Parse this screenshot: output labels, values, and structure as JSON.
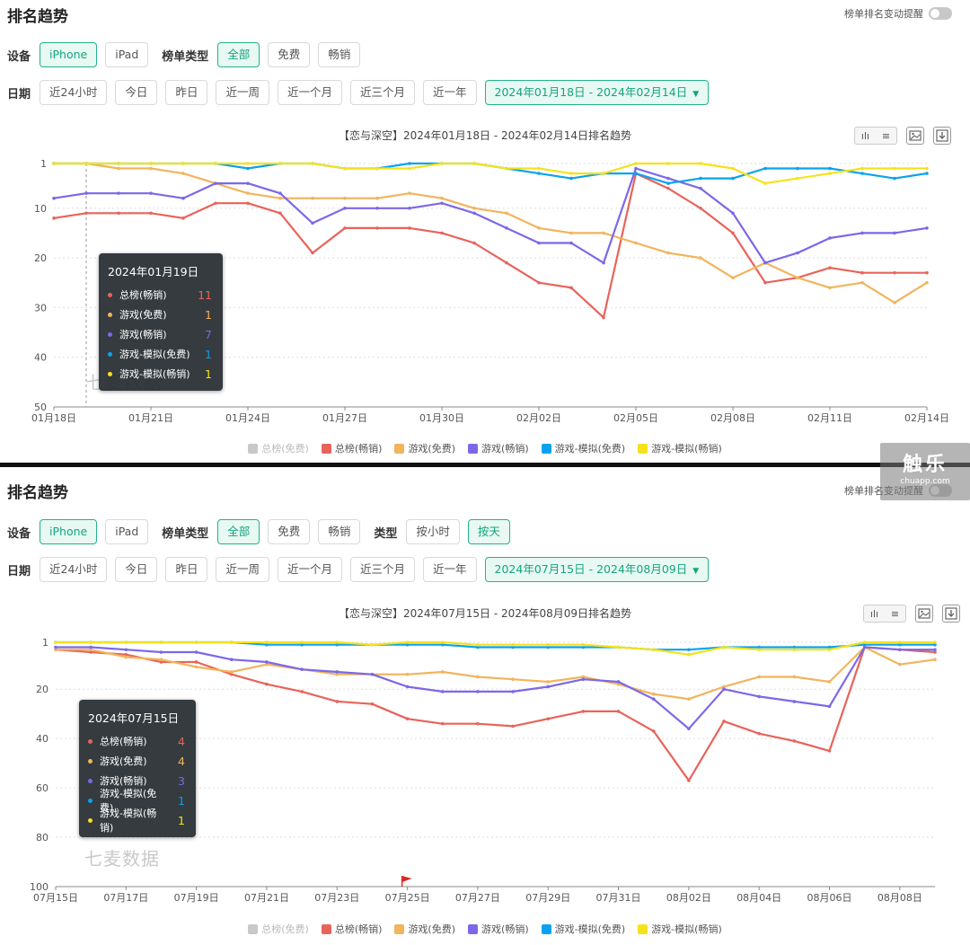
{
  "colors": {
    "overall_free": "#c8c8c8",
    "overall_paid": "#e8635a",
    "game_free": "#f2b45c",
    "game_paid": "#7b68e8",
    "sim_free": "#0aa2ee",
    "sim_paid": "#f5e21b",
    "accent": "#22b38a"
  },
  "brand": {
    "name": "触乐",
    "sub": "chuapp.com"
  },
  "panels": [
    {
      "title": "排名趋势",
      "toggle_label": "榜单排名变动提醒",
      "device_label": "设备",
      "devices": [
        "iPhone",
        "iPad"
      ],
      "list_type_label": "榜单类型",
      "list_types": [
        "全部",
        "免费",
        "畅销"
      ],
      "date_label": "日期",
      "date_ranges": [
        "近24小时",
        "今日",
        "昨日",
        "近一周",
        "近一个月",
        "近三个月",
        "近一年"
      ],
      "date_range_value": "2024年01月18日 - 2024年02月14日",
      "chart_title": "【恋与深空】2024年01月18日 - 2024年02月14日排名趋势",
      "tools": {
        "chart_icon": "ılı",
        "list_icon": "≡"
      },
      "watermark": "七麦数据",
      "tooltip": {
        "date": "2024年01月19日",
        "rows": [
          {
            "name": "总榜(畅销)",
            "value": "11",
            "color": "#e8635a"
          },
          {
            "name": "游戏(免费)",
            "value": "1",
            "color": "#f2b45c"
          },
          {
            "name": "游戏(畅销)",
            "value": "7",
            "color": "#7b68e8"
          },
          {
            "name": "游戏-模拟(免费)",
            "value": "1",
            "color": "#0aa2ee"
          },
          {
            "name": "游戏-模拟(畅销)",
            "value": "1",
            "color": "#f5e21b"
          }
        ]
      }
    },
    {
      "title": "排名趋势",
      "toggle_label": "榜单排名变动提醒",
      "device_label": "设备",
      "devices": [
        "iPhone",
        "iPad"
      ],
      "list_type_label": "榜单类型",
      "list_types": [
        "全部",
        "免费",
        "畅销"
      ],
      "kind_label": "类型",
      "kinds": [
        "按小时",
        "按天"
      ],
      "date_label": "日期",
      "date_ranges": [
        "近24小时",
        "今日",
        "昨日",
        "近一周",
        "近一个月",
        "近三个月",
        "近一年"
      ],
      "date_range_value": "2024年07月15日 - 2024年08月09日",
      "chart_title": "【恋与深空】2024年07月15日 - 2024年08月09日排名趋势",
      "tools": {
        "chart_icon": "ılı",
        "list_icon": "≡"
      },
      "watermark": "七麦数据",
      "tooltip": {
        "date": "2024年07月15日",
        "rows": [
          {
            "name": "总榜(畅销)",
            "value": "4",
            "color": "#e8635a"
          },
          {
            "name": "游戏(免费)",
            "value": "4",
            "color": "#f2b45c"
          },
          {
            "name": "游戏(畅销)",
            "value": "3",
            "color": "#7b68e8"
          },
          {
            "name": "游戏-模拟(免费)",
            "value": "1",
            "color": "#0aa2ee"
          },
          {
            "name": "游戏-模拟(畅销)",
            "value": "1",
            "color": "#f5e21b"
          }
        ]
      }
    }
  ],
  "chart_data": [
    {
      "type": "line",
      "title": "【恋与深空】2024年01月18日 - 2024年02月14日排名趋势",
      "y_inverted": true,
      "ylim": [
        1,
        50
      ],
      "y_ticks": [
        1,
        10,
        20,
        30,
        40,
        50
      ],
      "x_tick_labels": [
        "01月18日",
        "01月21日",
        "01月24日",
        "01月27日",
        "01月30日",
        "02月02日",
        "02月05日",
        "02月08日",
        "02月11日",
        "02月14日"
      ],
      "x_tick_every": 3,
      "grid": true,
      "legend_position": "bottom",
      "x": [
        "01月18日",
        "01月19日",
        "01月20日",
        "01月21日",
        "01月22日",
        "01月23日",
        "01月24日",
        "01月25日",
        "01月26日",
        "01月27日",
        "01月28日",
        "01月29日",
        "01月30日",
        "01月31日",
        "02月01日",
        "02月02日",
        "02月03日",
        "02月04日",
        "02月05日",
        "02月06日",
        "02月07日",
        "02月08日",
        "02月09日",
        "02月10日",
        "02月11日",
        "02月12日",
        "02月13日",
        "02月14日"
      ],
      "legend": [
        "总榜(免费)",
        "总榜(畅销)",
        "游戏(免费)",
        "游戏(畅销)",
        "游戏-模拟(免费)",
        "游戏-模拟(畅销)"
      ],
      "legend_disabled": [
        "总榜(免费)"
      ],
      "series": [
        {
          "name": "总榜(畅销)",
          "color": "#e8635a",
          "values": [
            12,
            11,
            11,
            11,
            12,
            9,
            9,
            11,
            19,
            14,
            14,
            14,
            15,
            17,
            21,
            25,
            26,
            32,
            3,
            6,
            10,
            15,
            25,
            24,
            22,
            23,
            23,
            23
          ]
        },
        {
          "name": "游戏(免费)",
          "color": "#f2b45c",
          "values": [
            1,
            1,
            2,
            2,
            3,
            5,
            7,
            8,
            8,
            8,
            8,
            7,
            8,
            10,
            11,
            14,
            15,
            15,
            17,
            19,
            20,
            24,
            21,
            24,
            26,
            25,
            29,
            25
          ]
        },
        {
          "name": "游戏(畅销)",
          "color": "#7b68e8",
          "values": [
            8,
            7,
            7,
            7,
            8,
            5,
            5,
            7,
            13,
            10,
            10,
            10,
            9,
            11,
            14,
            17,
            17,
            21,
            2,
            4,
            6,
            11,
            21,
            19,
            16,
            15,
            15,
            14
          ]
        },
        {
          "name": "游戏-模拟(免费)",
          "color": "#0aa2ee",
          "values": [
            1,
            1,
            1,
            1,
            1,
            1,
            2,
            1,
            1,
            2,
            2,
            1,
            1,
            1,
            2,
            3,
            4,
            3,
            3,
            5,
            4,
            4,
            2,
            2,
            2,
            3,
            4,
            3
          ]
        },
        {
          "name": "游戏-模拟(畅销)",
          "color": "#f5e21b",
          "values": [
            1,
            1,
            1,
            1,
            1,
            1,
            1,
            1,
            1,
            2,
            2,
            2,
            1,
            1,
            2,
            2,
            3,
            3,
            1,
            1,
            1,
            2,
            5,
            4,
            3,
            2,
            2,
            2
          ]
        }
      ]
    },
    {
      "type": "line",
      "title": "【恋与深空】2024年07月15日 - 2024年08月09日排名趋势",
      "y_inverted": true,
      "ylim": [
        1,
        100
      ],
      "y_ticks": [
        1,
        20,
        40,
        60,
        80,
        100
      ],
      "x_tick_labels": [
        "07月15日",
        "07月17日",
        "07月19日",
        "07月21日",
        "07月23日",
        "07月25日",
        "07月27日",
        "07月29日",
        "07月31日",
        "08月02日",
        "08月04日",
        "08月06日",
        "08月08日"
      ],
      "x_tick_every": 2,
      "grid": true,
      "legend_position": "bottom",
      "x": [
        "07月15日",
        "07月16日",
        "07月17日",
        "07月18日",
        "07月19日",
        "07月20日",
        "07月21日",
        "07月22日",
        "07月23日",
        "07月24日",
        "07月25日",
        "07月26日",
        "07月27日",
        "07月28日",
        "07月29日",
        "07月30日",
        "07月31日",
        "08月01日",
        "08月02日",
        "08月03日",
        "08月04日",
        "08月05日",
        "08月06日",
        "08月07日",
        "08月08日",
        "08月09日"
      ],
      "legend": [
        "总榜(免费)",
        "总榜(畅销)",
        "游戏(免费)",
        "游戏(畅销)",
        "游戏-模拟(免费)",
        "游戏-模拟(畅销)"
      ],
      "legend_disabled": [
        "总榜(免费)"
      ],
      "series": [
        {
          "name": "总榜(畅销)",
          "color": "#e8635a",
          "values": [
            4,
            5,
            6,
            9,
            9,
            14,
            18,
            21,
            25,
            26,
            32,
            34,
            34,
            35,
            32,
            29,
            29,
            37,
            57,
            33,
            38,
            41,
            45,
            3,
            4,
            5
          ]
        },
        {
          "name": "游戏(免费)",
          "color": "#f2b45c",
          "values": [
            4,
            4,
            7,
            8,
            11,
            13,
            10,
            12,
            14,
            14,
            14,
            13,
            15,
            16,
            17,
            15,
            18,
            22,
            24,
            19,
            15,
            15,
            17,
            3,
            10,
            8
          ]
        },
        {
          "name": "游戏(畅销)",
          "color": "#7b68e8",
          "values": [
            3,
            3,
            4,
            5,
            5,
            8,
            9,
            12,
            13,
            14,
            19,
            21,
            21,
            21,
            19,
            16,
            17,
            24,
            36,
            20,
            23,
            25,
            27,
            3,
            4,
            4
          ]
        },
        {
          "name": "游戏-模拟(免费)",
          "color": "#0aa2ee",
          "values": [
            1,
            1,
            1,
            1,
            1,
            1,
            2,
            2,
            2,
            2,
            2,
            2,
            3,
            3,
            3,
            3,
            3,
            4,
            4,
            3,
            3,
            3,
            3,
            2,
            2,
            2
          ]
        },
        {
          "name": "游戏-模拟(畅销)",
          "color": "#f5e21b",
          "values": [
            1,
            1,
            1,
            1,
            1,
            1,
            1,
            1,
            1,
            2,
            1,
            1,
            2,
            2,
            2,
            2,
            3,
            4,
            6,
            3,
            4,
            4,
            4,
            1,
            1,
            1
          ]
        }
      ]
    }
  ]
}
